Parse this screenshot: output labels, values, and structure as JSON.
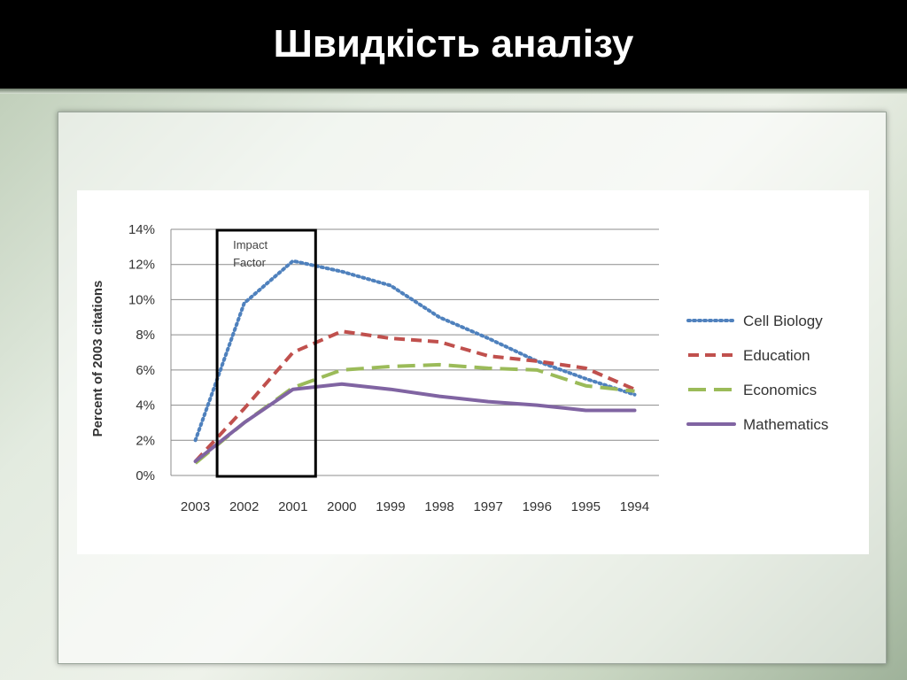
{
  "slide": {
    "title": "Швидкість аналізу"
  },
  "chart_data": {
    "type": "line",
    "title": "",
    "xlabel": "",
    "ylabel": "Percent of 2003 citations",
    "categories": [
      "2003",
      "2002",
      "2001",
      "2000",
      "1999",
      "1998",
      "1997",
      "1996",
      "1995",
      "1994"
    ],
    "ylim": [
      0,
      14
    ],
    "yticks": [
      "0%",
      "2%",
      "4%",
      "6%",
      "8%",
      "10%",
      "12%",
      "14%"
    ],
    "grid": true,
    "legend_position": "right",
    "annotation": {
      "text": "Impact Factor",
      "span": [
        "2002",
        "2001"
      ]
    },
    "series": [
      {
        "name": "Cell Biology",
        "style": "dotted",
        "color": "#4f81bd",
        "values": [
          2.0,
          9.8,
          12.2,
          11.6,
          10.8,
          9.0,
          7.8,
          6.5,
          5.5,
          4.6
        ]
      },
      {
        "name": "Education",
        "style": "dashed",
        "color": "#c0504d",
        "values": [
          0.8,
          3.8,
          7.0,
          8.2,
          7.8,
          7.6,
          6.8,
          6.5,
          6.1,
          4.9
        ]
      },
      {
        "name": "Economics",
        "style": "longdash",
        "color": "#9bbb59",
        "values": [
          0.7,
          3.0,
          5.0,
          6.0,
          6.2,
          6.3,
          6.1,
          6.0,
          5.1,
          4.8
        ]
      },
      {
        "name": "Mathematics",
        "style": "solid",
        "color": "#8064a2",
        "values": [
          0.8,
          3.0,
          4.9,
          5.2,
          4.9,
          4.5,
          4.2,
          4.0,
          3.7,
          3.7
        ]
      }
    ]
  }
}
